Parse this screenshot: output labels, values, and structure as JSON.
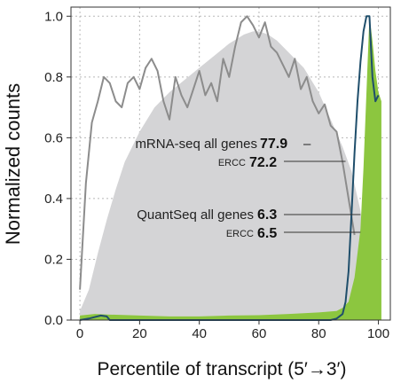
{
  "chart_data": {
    "type": "area",
    "xlabel": "Percentile of transcript (5′→3′)",
    "ylabel": "Normalized counts",
    "xlim": [
      -3,
      104
    ],
    "ylim": [
      0,
      1.03
    ],
    "x_ticks": [
      0,
      20,
      40,
      60,
      80,
      100
    ],
    "y_ticks": [
      0.0,
      0.2,
      0.4,
      0.6,
      0.8,
      1.0
    ],
    "x_tick_labels": [
      "0",
      "20",
      "40",
      "60",
      "80",
      "100"
    ],
    "y_tick_labels": [
      "0.0",
      "0.2",
      "0.4",
      "0.6",
      "0.8",
      "1.0"
    ],
    "grid": true,
    "series": [
      {
        "kind": "area",
        "color": "#d4d4d6",
        "x": [
          0,
          3,
          6,
          9,
          12,
          15,
          20,
          25,
          30,
          35,
          40,
          45,
          50,
          55,
          58,
          60,
          63,
          66,
          70,
          75,
          80,
          84,
          88,
          91,
          94,
          96,
          98,
          100
        ],
        "y": [
          0.03,
          0.1,
          0.22,
          0.33,
          0.43,
          0.52,
          0.62,
          0.7,
          0.75,
          0.79,
          0.83,
          0.87,
          0.91,
          0.94,
          0.95,
          0.95,
          0.94,
          0.92,
          0.88,
          0.83,
          0.75,
          0.66,
          0.57,
          0.49,
          0.36,
          0.2,
          0.06,
          0.0
        ]
      },
      {
        "kind": "line",
        "color": "#8c8c8c",
        "x": [
          0,
          2,
          4,
          6,
          8,
          10,
          12,
          14,
          16,
          18,
          20,
          22,
          24,
          26,
          28,
          30,
          32,
          34,
          36,
          38,
          40,
          42,
          44,
          46,
          48,
          50,
          52,
          54,
          56,
          58,
          60,
          62,
          64,
          66,
          68,
          70,
          72,
          74,
          76,
          78,
          80,
          82,
          84,
          86,
          88,
          90,
          92
        ],
        "y": [
          0.1,
          0.45,
          0.65,
          0.72,
          0.8,
          0.78,
          0.72,
          0.7,
          0.78,
          0.8,
          0.76,
          0.83,
          0.86,
          0.82,
          0.72,
          0.66,
          0.8,
          0.74,
          0.7,
          0.76,
          0.82,
          0.74,
          0.78,
          0.72,
          0.86,
          0.8,
          0.9,
          0.98,
          1.0,
          0.97,
          0.93,
          0.98,
          0.9,
          0.88,
          0.84,
          0.8,
          0.86,
          0.76,
          0.8,
          0.72,
          0.68,
          0.71,
          0.64,
          0.62,
          0.52,
          0.4,
          0.28
        ]
      },
      {
        "kind": "area",
        "color": "#8cc63f",
        "x": [
          0,
          5,
          10,
          20,
          30,
          40,
          50,
          60,
          70,
          80,
          86,
          88,
          90,
          92,
          93,
          94,
          95,
          96,
          97,
          98,
          99,
          100,
          101,
          101
        ],
        "y": [
          0.015,
          0.02,
          0.018,
          0.015,
          0.012,
          0.012,
          0.015,
          0.016,
          0.02,
          0.025,
          0.03,
          0.04,
          0.06,
          0.14,
          0.22,
          0.3,
          0.5,
          0.75,
          1.0,
          0.92,
          0.82,
          0.75,
          0.72,
          0.0
        ]
      },
      {
        "kind": "line",
        "color": "#1f4e6b",
        "x": [
          0,
          3,
          5,
          7,
          9,
          10,
          12,
          20,
          30,
          40,
          50,
          60,
          70,
          80,
          84,
          86,
          88,
          89,
          90,
          91,
          92,
          93,
          94,
          95,
          96,
          97,
          98,
          99,
          100
        ],
        "y": [
          0.0,
          0.005,
          0.01,
          0.015,
          0.012,
          0.0,
          0.0,
          0.0,
          0.0,
          0.0,
          0.0,
          0.0,
          0.0,
          0.0,
          0.0,
          0.005,
          0.02,
          0.06,
          0.16,
          0.35,
          0.55,
          0.72,
          0.85,
          0.95,
          1.0,
          1.0,
          0.8,
          0.72,
          0.74
        ]
      }
    ],
    "annotations": [
      {
        "label": "mRNA-seq all genes",
        "value": "77.9",
        "label_x": 89,
        "label_y": 0.63,
        "marker": "–"
      },
      {
        "label": "ERCC",
        "value": "72.2",
        "label_x": 89,
        "label_y": 0.55
      },
      {
        "label": "QuantSeq all genes",
        "value": "6.3",
        "label_x": 94,
        "label_y": 0.38
      },
      {
        "label": "ERCC",
        "value": "6.5",
        "label_x": 94,
        "label_y": 0.31
      }
    ]
  }
}
